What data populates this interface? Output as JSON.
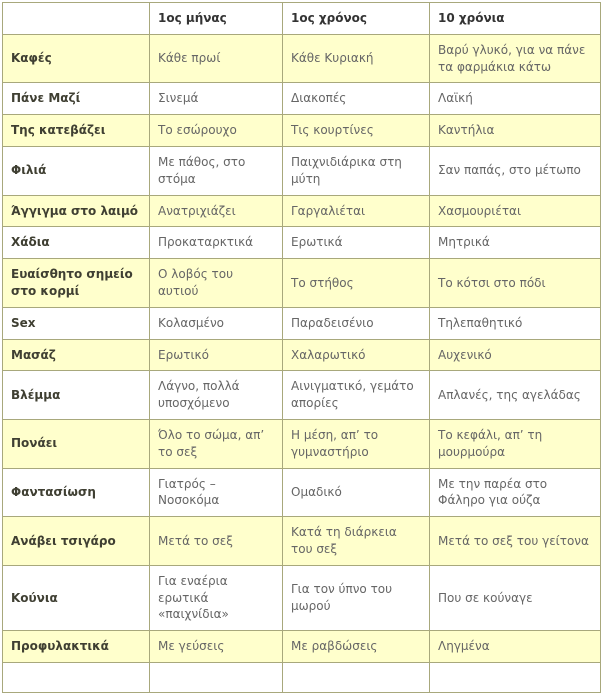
{
  "table": {
    "column_headers": [
      "",
      "1ος μήνας",
      "1ος χρόνος",
      "10 χρόνια"
    ],
    "rows": [
      {
        "label": "Καφές",
        "cells": [
          "Κάθε πρωί",
          "Κάθε Κυριακή",
          "Βαρύ γλυκό, για να πάνε τα φαρμάκια κάτω"
        ]
      },
      {
        "label": "Πάνε Μαζί",
        "cells": [
          "Σινεμά",
          "Διακοπές",
          "Λαϊκή"
        ]
      },
      {
        "label": "Της κατεβάζει",
        "cells": [
          "Το εσώρουχο",
          "Τις κουρτίνες",
          "Καντήλια"
        ]
      },
      {
        "label": "Φιλιά",
        "cells": [
          "Με πάθος, στο στόμα",
          "Παιχνιδιάρικα στη μύτη",
          "Σαν παπάς, στο μέτωπο"
        ]
      },
      {
        "label": "Άγγιγμα στο λαιμό",
        "cells": [
          "Ανατριχιάζει",
          "Γαργαλιέται",
          "Χασμουριέται"
        ]
      },
      {
        "label": "Χάδια",
        "cells": [
          "Προκαταρκτικά",
          "Ερωτικά",
          "Μητρικά"
        ]
      },
      {
        "label": "Ευαίσθητο σημείο στο κορμί",
        "cells": [
          "Ο λοβός του αυτιού",
          "Το στήθος",
          "Το κότσι στο πόδι"
        ]
      },
      {
        "label": "Sex",
        "cells": [
          "Κολασμένο",
          "Παραδεισένιο",
          "Τηλεπαθητικό"
        ]
      },
      {
        "label": "Μασάζ",
        "cells": [
          "Ερωτικό",
          "Χαλαρωτικό",
          "Αυχενικό"
        ]
      },
      {
        "label": "Βλέμμα",
        "cells": [
          "Λάγνο, πολλά υποσχόμενο",
          "Αινιγματικό, γεμάτο απορίες",
          "Απλανές, της αγελάδας"
        ]
      },
      {
        "label": "Πονάει",
        "cells": [
          "Όλο το σώμα, απ’ το σεξ",
          "Η μέση, απ’ το γυμναστήριο",
          "Το κεφάλι, απ’ τη μουρμούρα"
        ]
      },
      {
        "label": "Φαντασίωση",
        "cells": [
          "Γιατρός – Νοσοκόμα",
          "Ομαδικό",
          "Με την παρέα στο Φάληρο για ούζα"
        ]
      },
      {
        "label": "Ανάβει τσιγάρο",
        "cells": [
          "Μετά το σεξ",
          "Κατά τη διάρκεια του σεξ",
          "Μετά το σεξ του γείτονα"
        ]
      },
      {
        "label": "Κούνια",
        "cells": [
          "Για εναέρια ερωτικά «παιχνίδια»",
          "Για τον ύπνο του μωρού",
          "Που σε κούναγε"
        ]
      },
      {
        "label": "Προφυλακτικά",
        "cells": [
          "Με γεύσεις",
          "Με ραβδώσεις",
          "Ληγμένα"
        ]
      }
    ]
  },
  "colors": {
    "row_stripe": "#ffffcc",
    "row_plain": "#ffffff",
    "border": "#a8a87c",
    "label_text": "#3f3f32",
    "cell_text": "#666666",
    "header_text": "#333333"
  }
}
